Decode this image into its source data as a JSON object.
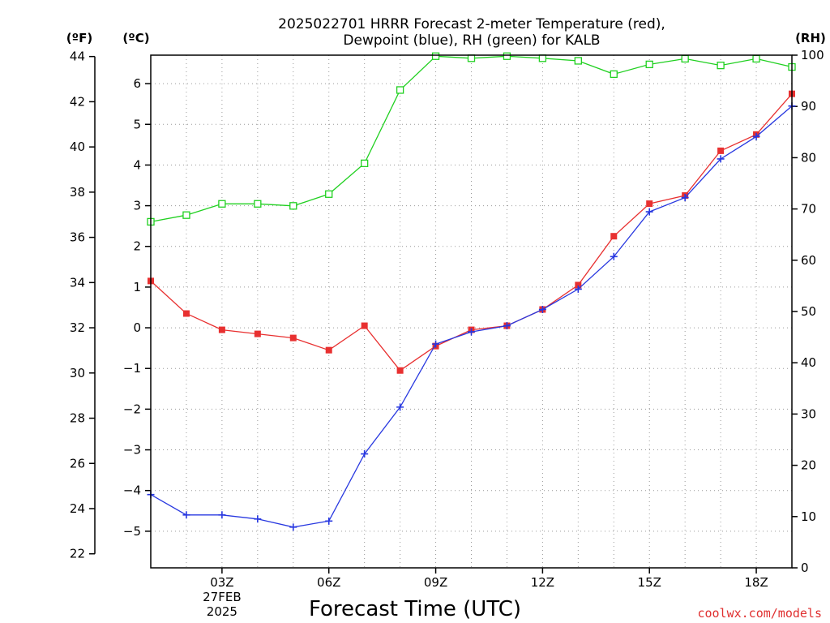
{
  "title": {
    "line1": "2025022701 HRRR Forecast 2-meter Temperature (red),",
    "line2": "Dewpoint (blue), RH (green) for KALB"
  },
  "units": {
    "fahrenheit": "(ºF)",
    "celsius": "(ºC)",
    "rh": "(RH)"
  },
  "credit": "coolwx.com/models",
  "colors": {
    "temperature": "#e83030",
    "dewpoint": "#2838e0",
    "rh": "#20d020",
    "grid": "#9a9a9a",
    "credit": "#e03030"
  },
  "chart_data": {
    "type": "line",
    "title": "2025022701 HRRR Forecast 2-meter Temperature (red), Dewpoint (blue), RH (green) for KALB",
    "xlabel": "Forecast Time (UTC)",
    "x": [
      1,
      2,
      3,
      4,
      5,
      6,
      7,
      8,
      9,
      10,
      11,
      12,
      13,
      14,
      15,
      16,
      17,
      18,
      19
    ],
    "x_ticks": [
      {
        "x": 3,
        "label": "03Z",
        "sublabels": [
          "27FEB",
          "2025"
        ]
      },
      {
        "x": 6,
        "label": "06Z"
      },
      {
        "x": 9,
        "label": "09Z"
      },
      {
        "x": 12,
        "label": "12Z"
      },
      {
        "x": 15,
        "label": "15Z"
      },
      {
        "x": 18,
        "label": "18Z"
      }
    ],
    "xlim": [
      1,
      19
    ],
    "y_celsius": {
      "lim": [
        -5.9,
        6.7
      ],
      "ticks": [
        -5,
        -4,
        -3,
        -2,
        -1,
        0,
        1,
        2,
        3,
        4,
        5,
        6
      ]
    },
    "y_fahrenheit": {
      "ticks": [
        22,
        24,
        26,
        28,
        30,
        32,
        34,
        36,
        38,
        40,
        42,
        44
      ]
    },
    "y_rh": {
      "lim": [
        0,
        100
      ],
      "ticks": [
        0,
        10,
        20,
        30,
        40,
        50,
        60,
        70,
        80,
        90,
        100
      ]
    },
    "grid": true,
    "series": [
      {
        "name": "Temperature",
        "axis": "celsius",
        "marker": "filled-square",
        "values": [
          1.15,
          0.35,
          -0.05,
          -0.15,
          -0.25,
          -0.55,
          0.05,
          -1.05,
          -0.45,
          -0.05,
          0.05,
          0.45,
          1.05,
          2.25,
          3.05,
          3.25,
          4.35,
          4.75,
          5.75
        ]
      },
      {
        "name": "Dewpoint",
        "axis": "celsius",
        "marker": "plus",
        "values": [
          -4.1,
          -4.6,
          -4.6,
          -4.7,
          -4.9,
          -4.75,
          -3.1,
          -1.95,
          -0.4,
          -0.1,
          0.05,
          0.45,
          0.95,
          1.75,
          2.85,
          3.2,
          4.15,
          4.7,
          5.45
        ]
      },
      {
        "name": "RH",
        "axis": "rh",
        "marker": "open-square",
        "values": [
          67.5,
          68.8,
          71.0,
          71.0,
          70.6,
          72.9,
          78.9,
          93.2,
          99.8,
          99.4,
          99.8,
          99.4,
          98.9,
          96.3,
          98.2,
          99.3,
          98.0,
          99.3,
          97.7
        ]
      }
    ]
  }
}
